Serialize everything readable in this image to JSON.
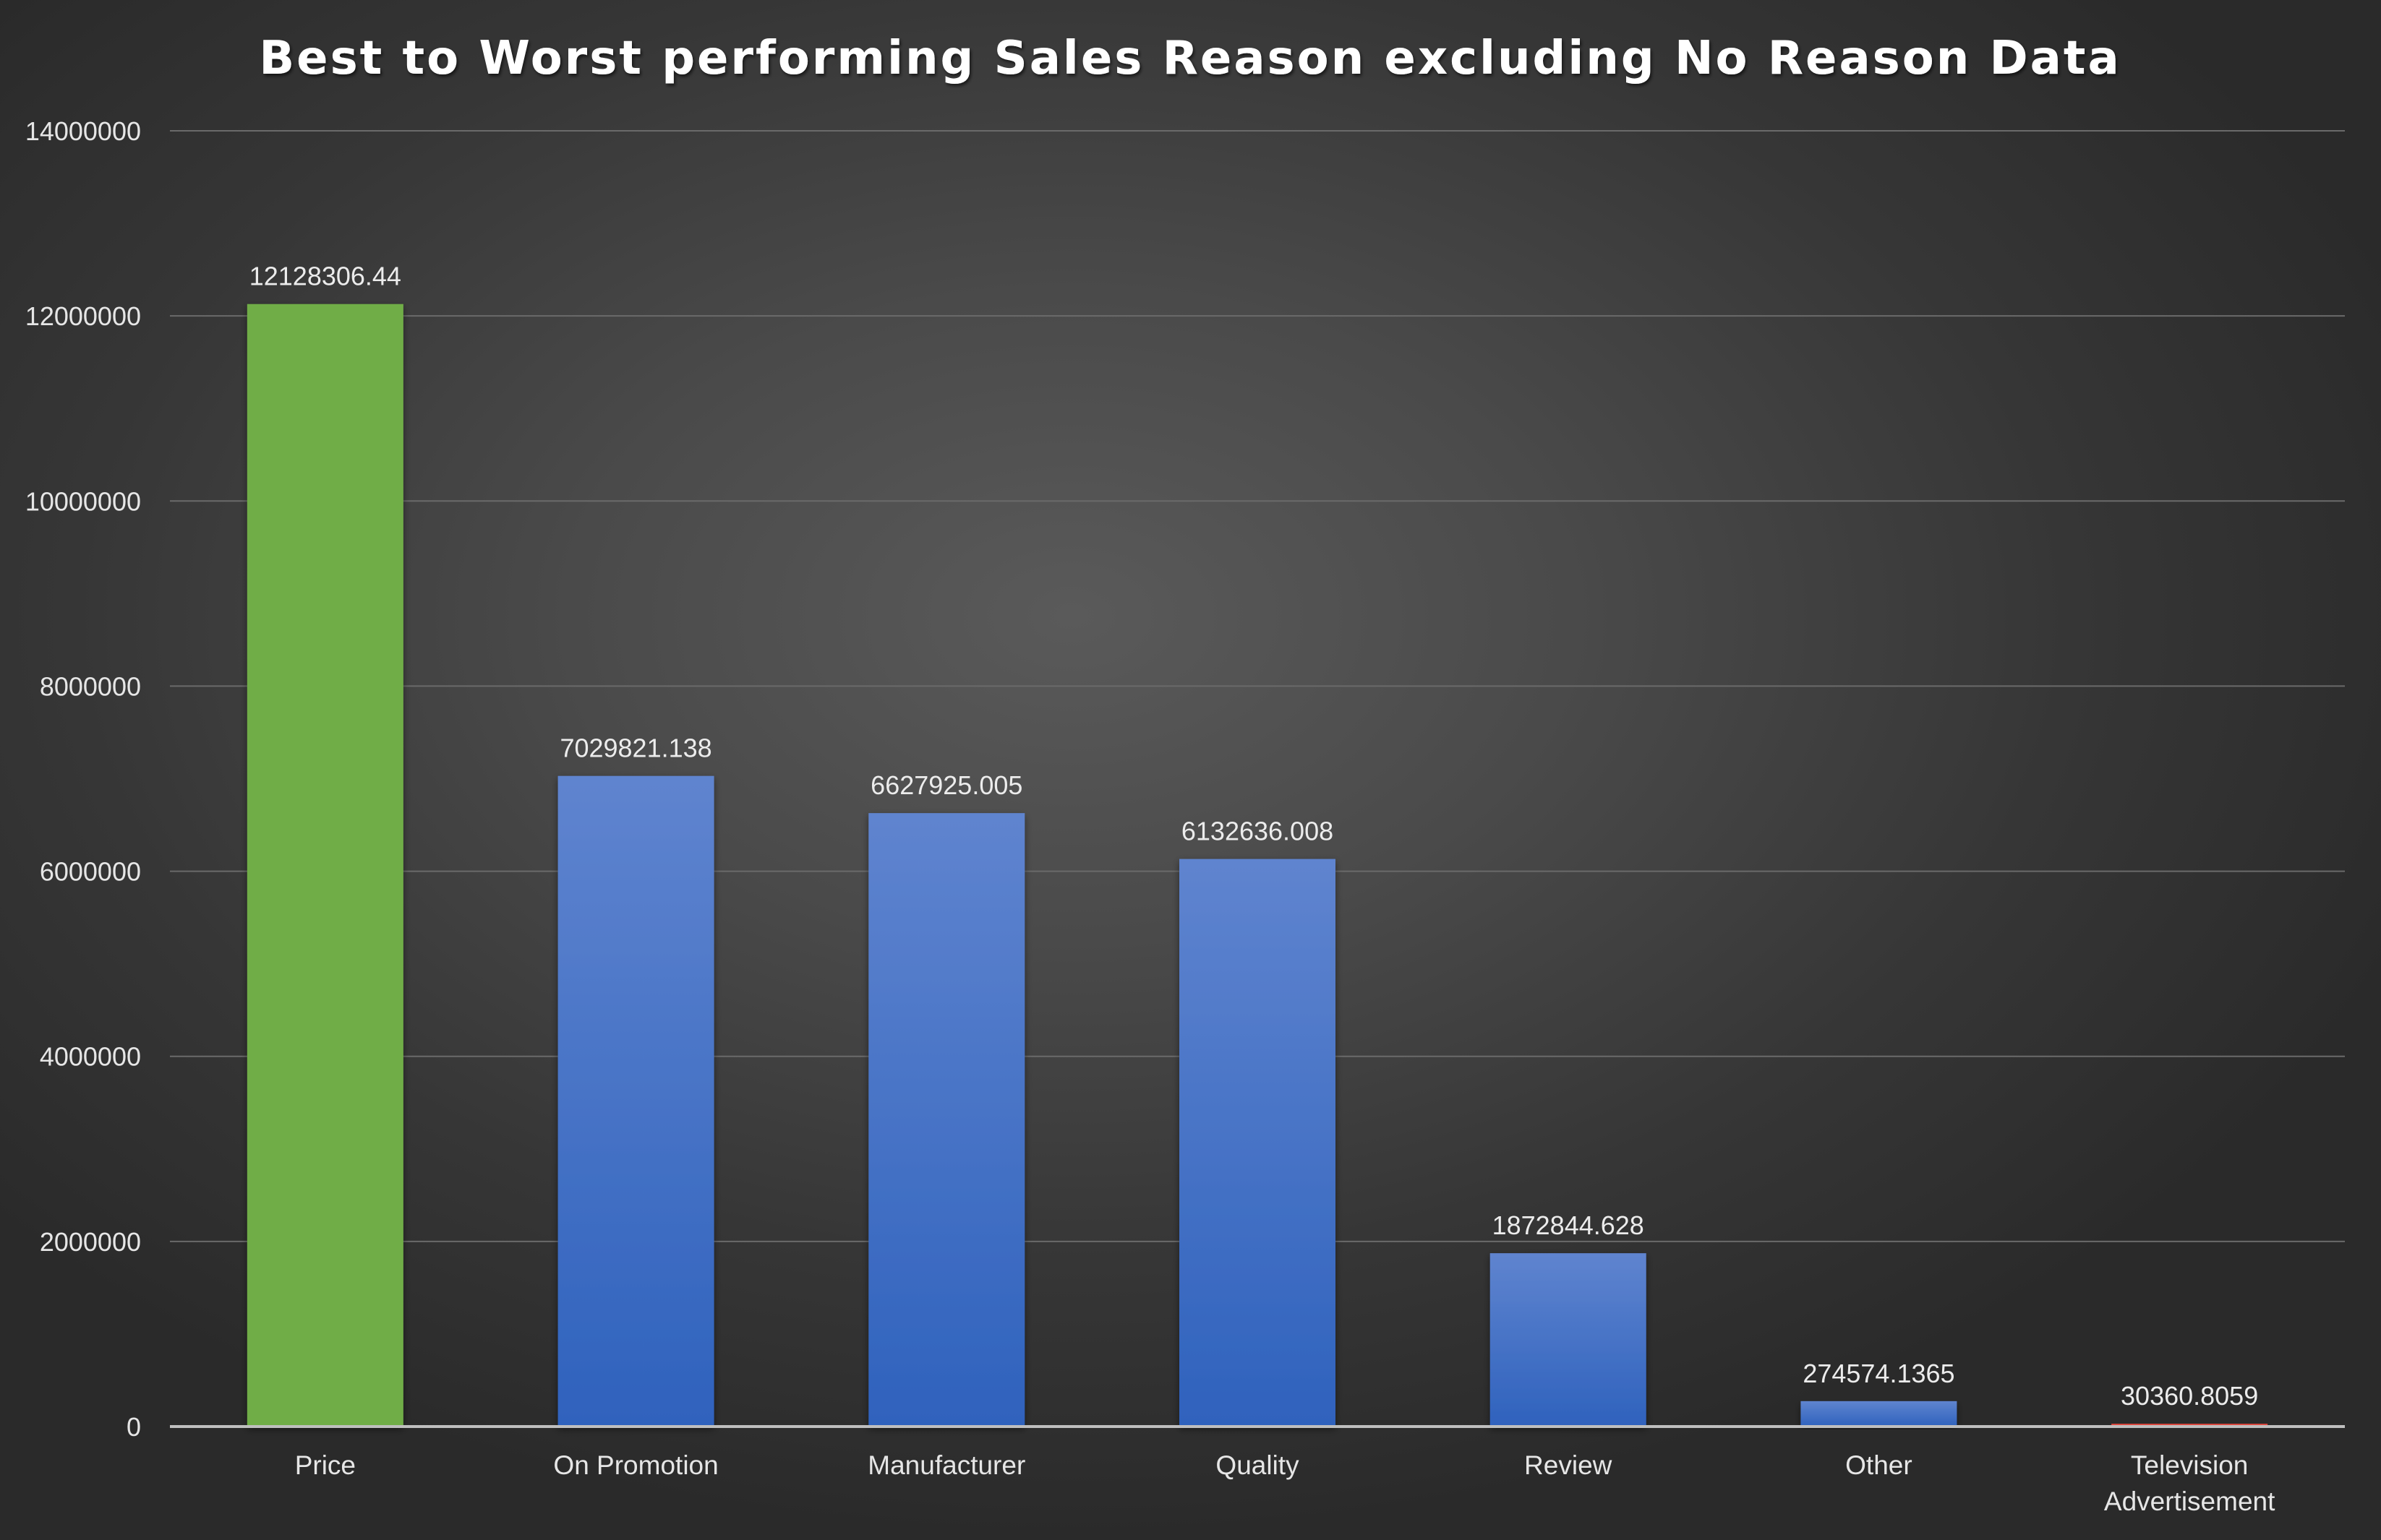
{
  "chart_data": {
    "type": "bar",
    "title": "Best to Worst performing Sales Reason excluding No Reason Data",
    "xlabel": "",
    "ylabel": "",
    "categories": [
      [
        "Price"
      ],
      [
        "On Promotion"
      ],
      [
        "Manufacturer"
      ],
      [
        "Quality"
      ],
      [
        "Review"
      ],
      [
        "Other"
      ],
      [
        "Television",
        "Advertisement"
      ]
    ],
    "values": [
      12128306.44,
      7029821.138,
      6627925.005,
      6132636.008,
      1872844.628,
      274574.1365,
      30360.8059
    ],
    "data_labels": [
      "12128306.44",
      "7029821.138",
      "6627925.005",
      "6132636.008",
      "1872844.628",
      "274574.1365",
      "30360.8059"
    ],
    "bar_colors": [
      "green",
      "blue",
      "blue",
      "blue",
      "blue",
      "blue",
      "red"
    ],
    "ylim": [
      0,
      14000000
    ],
    "yticks": [
      0,
      2000000,
      4000000,
      6000000,
      8000000,
      10000000,
      12000000,
      14000000
    ],
    "ytick_labels": [
      "0",
      "2000000",
      "4000000",
      "6000000",
      "8000000",
      "10000000",
      "12000000",
      "14000000"
    ],
    "grid": true,
    "legend": "none"
  },
  "colors": {
    "background_center": "#5a5a5a",
    "background_edge": "#2a2a2a",
    "gridline": "#6a6a6a",
    "axis_line": "#bfbfbf",
    "green_top": "#70ad47",
    "green_bottom": "#70ad47",
    "blue_top": "#5f84cf",
    "blue_bottom": "#2f62bd",
    "red": "#e0463c",
    "text": "#e6e6e6"
  }
}
